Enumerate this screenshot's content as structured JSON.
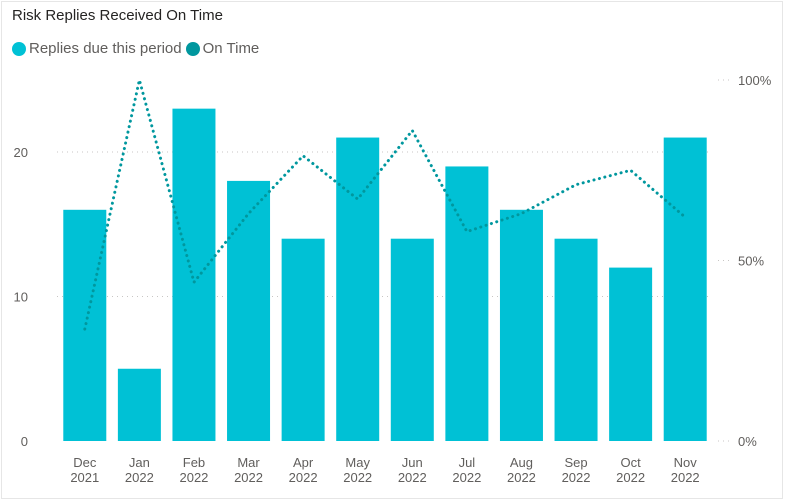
{
  "chart_data": {
    "type": "bar",
    "title": "Risk Replies Received On Time",
    "categories": [
      [
        "Dec",
        "2021"
      ],
      [
        "Jan",
        "2022"
      ],
      [
        "Feb",
        "2022"
      ],
      [
        "Mar",
        "2022"
      ],
      [
        "Apr",
        "2022"
      ],
      [
        "May",
        "2022"
      ],
      [
        "Jun",
        "2022"
      ],
      [
        "Jul",
        "2022"
      ],
      [
        "Aug",
        "2022"
      ],
      [
        "Sep",
        "2022"
      ],
      [
        "Oct",
        "2022"
      ],
      [
        "Nov",
        "2022"
      ]
    ],
    "series": [
      {
        "name": "Replies due this period",
        "type": "bar",
        "axis": "left",
        "color": "#00c1d5",
        "values": [
          16,
          5,
          23,
          18,
          14,
          21,
          14,
          19,
          16,
          14,
          12,
          21
        ]
      },
      {
        "name": "On Time",
        "type": "line",
        "axis": "right",
        "style": "dotted",
        "color": "#00979e",
        "values": [
          31,
          100,
          44,
          63,
          79,
          67,
          86,
          58,
          63,
          71,
          75,
          62
        ]
      }
    ],
    "left_axis": {
      "ticks": [
        0,
        10,
        20
      ],
      "ylim": [
        0,
        25
      ]
    },
    "right_axis": {
      "ticks": [
        "0%",
        "50%",
        "100%"
      ],
      "ylim": [
        0,
        100
      ]
    },
    "grid": true,
    "legend_position": "top-left"
  }
}
